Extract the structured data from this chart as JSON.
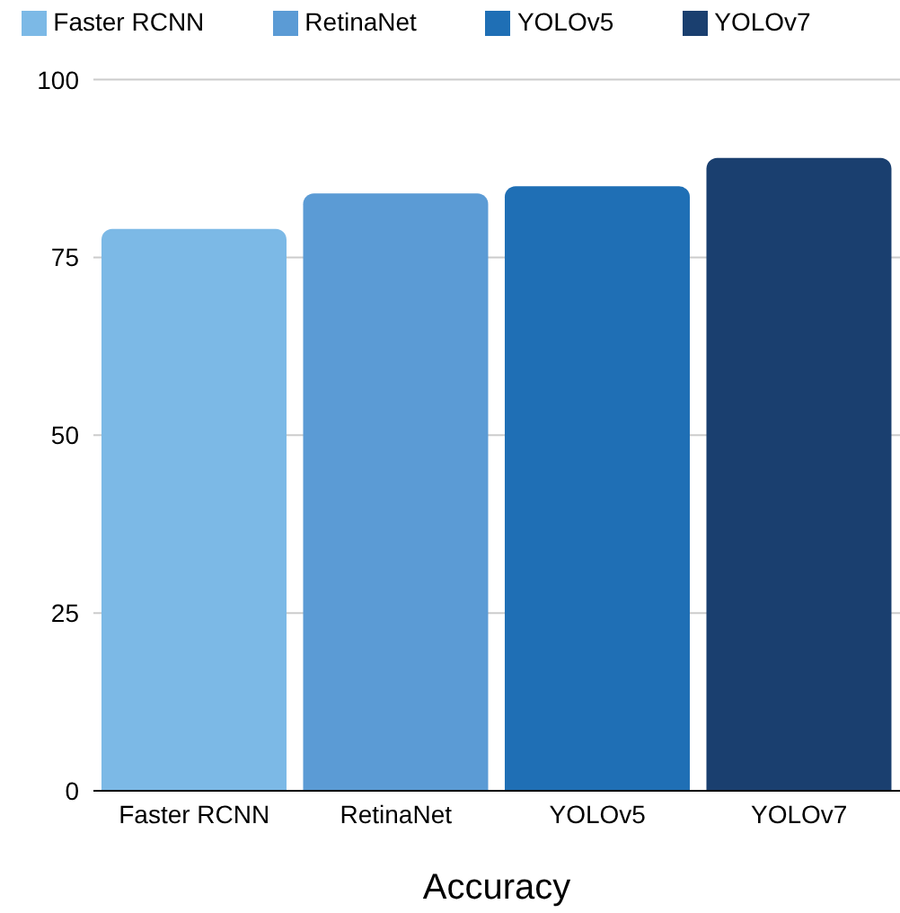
{
  "chart_data": {
    "type": "bar",
    "xlabel": "Accuracy",
    "categories": [
      "Faster RCNN",
      "RetinaNet",
      "YOLOv5",
      "YOLOv7"
    ],
    "series": [
      {
        "name": "Faster RCNN",
        "color": "#7cb9e6",
        "values": [
          79,
          null,
          null,
          null
        ]
      },
      {
        "name": "RetinaNet",
        "color": "#5b9bd5",
        "values": [
          null,
          84,
          null,
          null
        ]
      },
      {
        "name": "YOLOv5",
        "color": "#1f6fb5",
        "values": [
          null,
          null,
          85,
          null
        ]
      },
      {
        "name": "YOLOv7",
        "color": "#1a3f6f",
        "values": [
          null,
          null,
          null,
          89
        ]
      }
    ],
    "stacked": true,
    "ylim": [
      0,
      100
    ],
    "yticks": [
      0,
      25,
      50,
      75,
      100
    ],
    "grid": "y",
    "legend": "top"
  }
}
